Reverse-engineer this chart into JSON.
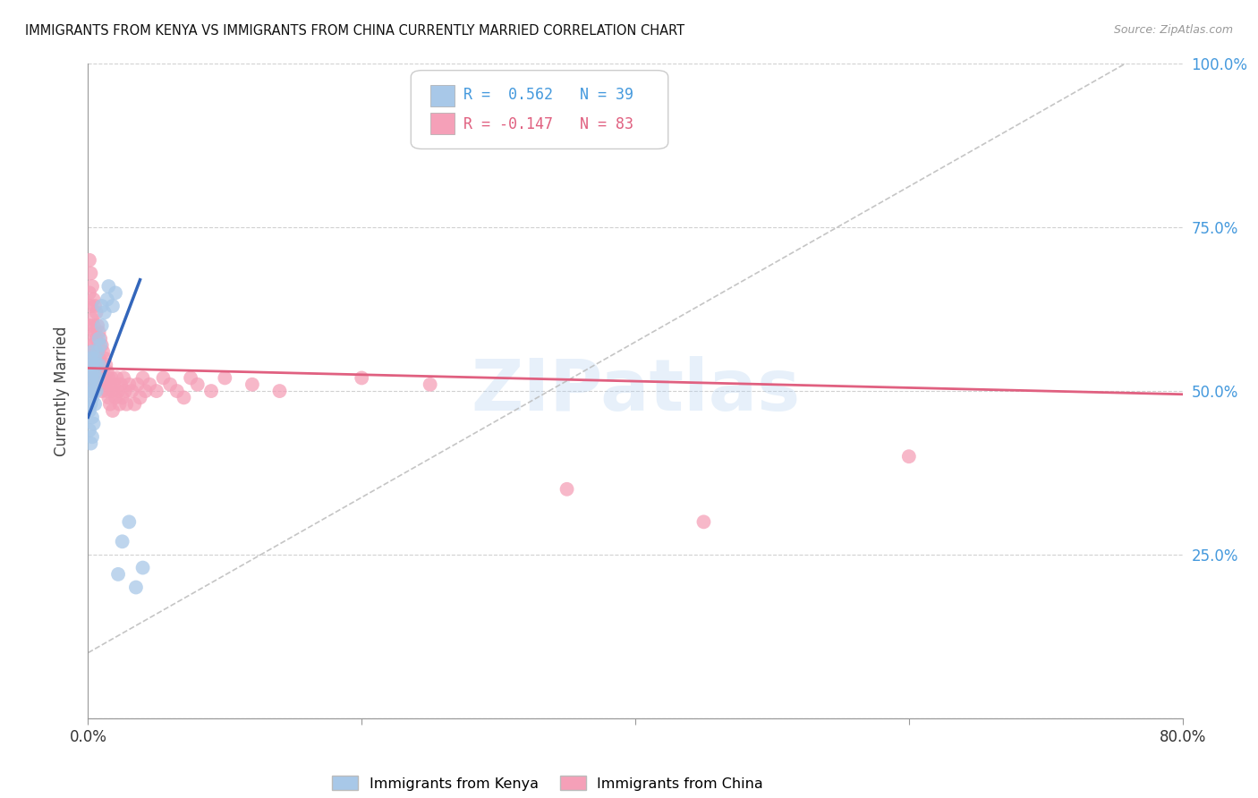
{
  "title": "IMMIGRANTS FROM KENYA VS IMMIGRANTS FROM CHINA CURRENTLY MARRIED CORRELATION CHART",
  "source": "Source: ZipAtlas.com",
  "ylabel_left": "Currently Married",
  "kenya_color": "#a8c8e8",
  "china_color": "#f5a0b8",
  "kenya_line_color": "#3366bb",
  "china_line_color": "#e06080",
  "kenya_R": 0.562,
  "kenya_N": 39,
  "china_R": -0.147,
  "china_N": 83,
  "watermark": "ZIPatlas",
  "background_color": "#ffffff",
  "grid_color": "#cccccc",
  "title_color": "#111111",
  "right_label_color": "#4499dd",
  "kenya_x": [
    0.001,
    0.001,
    0.001,
    0.002,
    0.002,
    0.002,
    0.002,
    0.002,
    0.003,
    0.003,
    0.003,
    0.003,
    0.003,
    0.003,
    0.004,
    0.004,
    0.004,
    0.005,
    0.005,
    0.005,
    0.006,
    0.006,
    0.007,
    0.007,
    0.008,
    0.008,
    0.009,
    0.01,
    0.01,
    0.012,
    0.014,
    0.015,
    0.018,
    0.02,
    0.022,
    0.025,
    0.03,
    0.035,
    0.04
  ],
  "kenya_y": [
    0.44,
    0.47,
    0.5,
    0.42,
    0.48,
    0.51,
    0.53,
    0.55,
    0.43,
    0.46,
    0.49,
    0.52,
    0.54,
    0.56,
    0.45,
    0.5,
    0.53,
    0.48,
    0.52,
    0.55,
    0.5,
    0.54,
    0.52,
    0.56,
    0.54,
    0.58,
    0.57,
    0.6,
    0.63,
    0.62,
    0.64,
    0.66,
    0.63,
    0.65,
    0.22,
    0.27,
    0.3,
    0.2,
    0.23
  ],
  "china_x": [
    0.001,
    0.001,
    0.001,
    0.001,
    0.002,
    0.002,
    0.002,
    0.002,
    0.002,
    0.003,
    0.003,
    0.003,
    0.003,
    0.004,
    0.004,
    0.004,
    0.004,
    0.005,
    0.005,
    0.005,
    0.005,
    0.006,
    0.006,
    0.006,
    0.007,
    0.007,
    0.007,
    0.008,
    0.008,
    0.008,
    0.009,
    0.009,
    0.01,
    0.01,
    0.01,
    0.011,
    0.011,
    0.012,
    0.012,
    0.013,
    0.014,
    0.014,
    0.015,
    0.015,
    0.016,
    0.016,
    0.017,
    0.018,
    0.018,
    0.019,
    0.02,
    0.021,
    0.022,
    0.023,
    0.024,
    0.025,
    0.026,
    0.027,
    0.028,
    0.03,
    0.032,
    0.034,
    0.036,
    0.038,
    0.04,
    0.042,
    0.045,
    0.05,
    0.055,
    0.06,
    0.065,
    0.07,
    0.075,
    0.08,
    0.09,
    0.1,
    0.12,
    0.14,
    0.2,
    0.25,
    0.35,
    0.45,
    0.6
  ],
  "china_y": [
    0.7,
    0.65,
    0.6,
    0.55,
    0.68,
    0.63,
    0.58,
    0.54,
    0.5,
    0.66,
    0.61,
    0.57,
    0.53,
    0.64,
    0.6,
    0.56,
    0.52,
    0.63,
    0.59,
    0.55,
    0.51,
    0.62,
    0.58,
    0.54,
    0.6,
    0.56,
    0.52,
    0.59,
    0.55,
    0.51,
    0.58,
    0.54,
    0.57,
    0.53,
    0.5,
    0.56,
    0.52,
    0.55,
    0.51,
    0.54,
    0.5,
    0.53,
    0.52,
    0.49,
    0.51,
    0.48,
    0.52,
    0.5,
    0.47,
    0.51,
    0.49,
    0.52,
    0.5,
    0.48,
    0.51,
    0.49,
    0.52,
    0.5,
    0.48,
    0.51,
    0.5,
    0.48,
    0.51,
    0.49,
    0.52,
    0.5,
    0.51,
    0.5,
    0.52,
    0.51,
    0.5,
    0.49,
    0.52,
    0.51,
    0.5,
    0.52,
    0.51,
    0.5,
    0.52,
    0.51,
    0.35,
    0.3,
    0.4
  ],
  "xlim": [
    0.0,
    0.8
  ],
  "ylim": [
    0.0,
    1.0
  ],
  "x_ticks": [
    0.0,
    0.2,
    0.4,
    0.6,
    0.8
  ],
  "x_tick_labels": [
    "0.0%",
    "",
    "",
    "",
    "80.0%"
  ],
  "y_ticks": [
    0.0,
    0.25,
    0.5,
    0.75,
    1.0
  ],
  "y_tick_labels_right": [
    "",
    "25.0%",
    "50.0%",
    "75.0%",
    "100.0%"
  ]
}
